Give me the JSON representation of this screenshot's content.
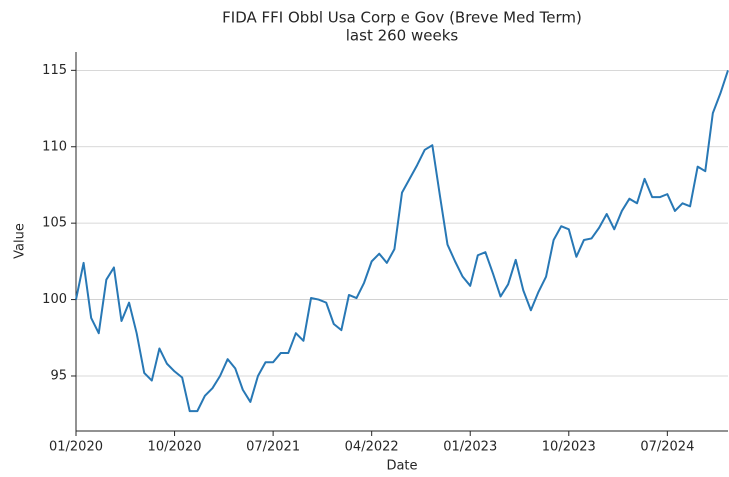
{
  "chart_data": {
    "type": "line",
    "title": "FIDA FFI Obbl Usa Corp e Gov (Breve Med Term)",
    "subtitle": "last 260 weeks",
    "x_label": "Date",
    "y_label": "Value",
    "categories": [
      "01/2020",
      null,
      null,
      null,
      null,
      null,
      null,
      null,
      null,
      null,
      null,
      null,
      null,
      "10/2020",
      null,
      null,
      null,
      null,
      null,
      null,
      null,
      null,
      null,
      null,
      null,
      null,
      "07/2021",
      null,
      null,
      null,
      null,
      null,
      null,
      null,
      null,
      null,
      null,
      null,
      null,
      "04/2022",
      null,
      null,
      null,
      null,
      null,
      null,
      null,
      null,
      null,
      null,
      null,
      null,
      "01/2023",
      null,
      null,
      null,
      null,
      null,
      null,
      null,
      null,
      null,
      null,
      null,
      null,
      "10/2023",
      null,
      null,
      null,
      null,
      null,
      null,
      null,
      null,
      null,
      null,
      null,
      null,
      "07/2024",
      null,
      null,
      null,
      null,
      null,
      null,
      null,
      null
    ],
    "series": [
      {
        "name": "FIDA FFI Obbl Usa Corp e Gov (Breve Med Term)",
        "color": "#2878b5",
        "values": [
          100.0,
          102.4,
          98.8,
          97.8,
          101.3,
          102.1,
          98.6,
          99.8,
          97.8,
          95.2,
          94.7,
          96.8,
          95.8,
          95.3,
          94.9,
          92.7,
          92.7,
          93.7,
          94.2,
          95.0,
          96.1,
          95.5,
          94.1,
          93.3,
          95.0,
          95.9,
          95.9,
          96.5,
          96.5,
          97.8,
          97.3,
          100.1,
          100.0,
          99.8,
          98.4,
          98.0,
          100.3,
          100.1,
          101.1,
          102.5,
          103.0,
          102.4,
          103.3,
          107.0,
          107.9,
          108.8,
          109.8,
          110.1,
          106.8,
          103.6,
          102.5,
          101.5,
          100.9,
          102.9,
          103.1,
          101.7,
          100.2,
          101.0,
          102.6,
          100.6,
          99.3,
          100.5,
          101.5,
          103.9,
          104.8,
          104.6,
          102.8,
          103.9,
          104.0,
          104.7,
          105.6,
          104.6,
          105.8,
          106.6,
          106.3,
          107.9,
          106.7,
          106.7,
          106.9,
          105.8,
          106.3,
          106.1,
          108.7,
          108.4,
          112.2,
          113.5,
          115.0
        ]
      }
    ],
    "ylim": [
      91.4,
      116.2
    ],
    "yticks": [
      95,
      100,
      105,
      110,
      115
    ],
    "grid": true
  }
}
